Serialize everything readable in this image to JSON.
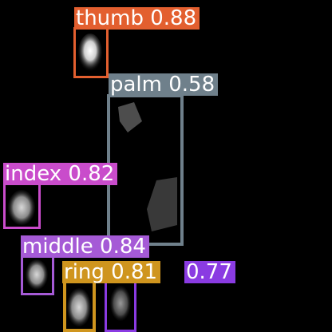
{
  "scene": {
    "background": "#000000",
    "description_free": true
  },
  "detections": [
    {
      "id": "thumb",
      "label": "thumb 0.88",
      "class": "thumb",
      "confidence": 0.88,
      "color": "#e35f2f"
    },
    {
      "id": "palm",
      "label": "palm 0.58",
      "class": "palm",
      "confidence": 0.58,
      "color": "#6f808b"
    },
    {
      "id": "index",
      "label": "index 0.82",
      "class": "index",
      "confidence": 0.82,
      "color": "#c94ccb"
    },
    {
      "id": "middle",
      "label": "middle 0.84",
      "class": "middle",
      "confidence": 0.84,
      "color": "#a55ad6"
    },
    {
      "id": "ring",
      "label": "ring 0.81",
      "class": "ring",
      "confidence": 0.81,
      "color": "#cf951e"
    },
    {
      "id": "pinky",
      "label": "0.77",
      "confidence": 0.77,
      "color": "#8a3be2"
    }
  ]
}
